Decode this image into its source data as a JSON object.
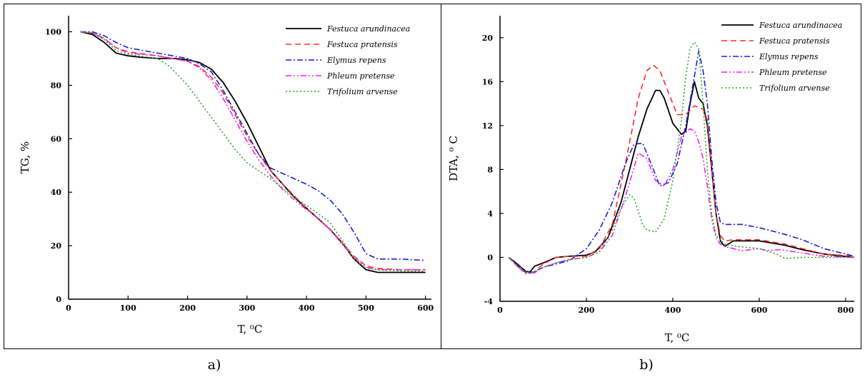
{
  "captions": [
    "a)",
    "b)"
  ],
  "chart_data": [
    {
      "type": "line",
      "panel": "a",
      "xlabel": "T, ⁰C",
      "ylabel": "TG, %",
      "xlim": [
        0,
        610
      ],
      "ylim": [
        0,
        106
      ],
      "xticks": [
        0,
        100,
        200,
        300,
        400,
        500,
        600
      ],
      "yticks": [
        0,
        20,
        40,
        60,
        80,
        100
      ],
      "legend_position": "top-right",
      "series": [
        {
          "name": "Festuca arundinacea",
          "color": "#000000",
          "dash": "solid",
          "x": [
            20,
            40,
            60,
            80,
            100,
            120,
            150,
            180,
            200,
            220,
            240,
            260,
            280,
            300,
            320,
            340,
            360,
            380,
            400,
            420,
            440,
            460,
            480,
            500,
            520,
            560,
            600
          ],
          "y": [
            100,
            99,
            96,
            92,
            91,
            90.5,
            90,
            90,
            89.5,
            88.5,
            86,
            81,
            74,
            66,
            57,
            48,
            43,
            38,
            34,
            30,
            26,
            21,
            15,
            11,
            10,
            10,
            10
          ]
        },
        {
          "name": "Festuca pratensis",
          "color": "#ff2b2b",
          "dash": "8,5",
          "x": [
            20,
            40,
            60,
            80,
            100,
            150,
            200,
            220,
            240,
            260,
            280,
            300,
            320,
            340,
            360,
            380,
            400,
            420,
            440,
            460,
            480,
            500,
            520,
            560,
            600
          ],
          "y": [
            100,
            99.5,
            97.5,
            94,
            92.5,
            91,
            89,
            87,
            83,
            77,
            69,
            61,
            54,
            48,
            43,
            38.5,
            34,
            30,
            26,
            21,
            16,
            12.5,
            11.5,
            11,
            11
          ]
        },
        {
          "name": "Elymus repens",
          "color": "#1c1cdd",
          "dash": "8,3,2,3",
          "x": [
            20,
            40,
            60,
            80,
            100,
            150,
            200,
            220,
            240,
            260,
            280,
            300,
            320,
            340,
            360,
            380,
            400,
            420,
            440,
            460,
            480,
            500,
            520,
            560,
            600
          ],
          "y": [
            100,
            100,
            98.5,
            96,
            94,
            92,
            90,
            88,
            85,
            78,
            70,
            62,
            54,
            49,
            47,
            45,
            43,
            40.5,
            37,
            32,
            25,
            17,
            15,
            15,
            14.5
          ]
        },
        {
          "name": "Phleum pretense",
          "color": "#ee22ee",
          "dash": "8,3,2,3,2,3",
          "x": [
            20,
            40,
            60,
            80,
            100,
            150,
            200,
            220,
            240,
            260,
            280,
            300,
            320,
            340,
            360,
            380,
            400,
            420,
            440,
            460,
            480,
            500,
            520,
            560,
            600
          ],
          "y": [
            100,
            99.5,
            97.5,
            94,
            92,
            91,
            89,
            86.5,
            82,
            75,
            67,
            59,
            52,
            46,
            41,
            37,
            33.5,
            30,
            26,
            20.5,
            15.5,
            12,
            11,
            11,
            11
          ]
        },
        {
          "name": "Trifolium arvense",
          "color": "#22aa22",
          "dash": "2,3",
          "x": [
            20,
            40,
            60,
            80,
            100,
            150,
            170,
            200,
            220,
            240,
            260,
            280,
            300,
            320,
            340,
            360,
            380,
            400,
            420,
            440,
            460,
            480,
            500,
            520,
            560,
            600
          ],
          "y": [
            100,
            99.5,
            97,
            93,
            91.5,
            90,
            87,
            80,
            74,
            68,
            62,
            56,
            51,
            48,
            45,
            41.5,
            38,
            35,
            32,
            28.5,
            22,
            15,
            11.5,
            11,
            10.5,
            10.5
          ]
        }
      ]
    },
    {
      "type": "line",
      "panel": "b",
      "xlabel": "T, ⁰C",
      "ylabel": "DTA, ⁰ C",
      "xlim": [
        0,
        820
      ],
      "ylim": [
        -4,
        22
      ],
      "xticks": [
        0,
        200,
        400,
        600,
        800
      ],
      "yticks": [
        -4,
        0,
        4,
        8,
        12,
        16,
        20
      ],
      "legend_position": "top-right",
      "series": [
        {
          "name": "Festuca arundinacea",
          "color": "#000000",
          "dash": "solid",
          "x": [
            20,
            40,
            60,
            70,
            80,
            100,
            130,
            160,
            200,
            220,
            250,
            280,
            300,
            320,
            340,
            360,
            370,
            380,
            400,
            420,
            430,
            440,
            450,
            460,
            470,
            480,
            490,
            500,
            510,
            520,
            540,
            600,
            660,
            700,
            750,
            820
          ],
          "y": [
            0,
            -0.6,
            -1.3,
            -1.3,
            -0.8,
            -0.5,
            0,
            0.1,
            0.2,
            0.5,
            1.8,
            5,
            8,
            11,
            13.5,
            15.2,
            15.2,
            14.5,
            12.2,
            11.2,
            11.5,
            14,
            16,
            14.5,
            14,
            12,
            8,
            4,
            1.5,
            1,
            1.5,
            1.5,
            1.1,
            0.7,
            0.3,
            0
          ]
        },
        {
          "name": "Festuca pratensis",
          "color": "#ff2b2b",
          "dash": "8,5",
          "x": [
            20,
            40,
            60,
            80,
            100,
            130,
            160,
            200,
            230,
            260,
            290,
            320,
            340,
            355,
            370,
            390,
            410,
            430,
            450,
            470,
            480,
            490,
            500,
            510,
            520,
            540,
            600,
            660,
            700,
            750,
            820
          ],
          "y": [
            0,
            -0.8,
            -1.4,
            -1.3,
            -0.6,
            0,
            0.1,
            0.1,
            0.8,
            3,
            8.5,
            14.5,
            17,
            17.5,
            17,
            15,
            13,
            13,
            13.8,
            13.5,
            12.5,
            8,
            4,
            2,
            1.5,
            1.6,
            1.6,
            1.2,
            0.8,
            0.3,
            0.1
          ]
        },
        {
          "name": "Elymus repens",
          "color": "#1c1cdd",
          "dash": "8,3,2,3",
          "x": [
            20,
            40,
            60,
            70,
            80,
            100,
            130,
            160,
            200,
            230,
            260,
            290,
            310,
            330,
            350,
            370,
            390,
            410,
            430,
            450,
            460,
            470,
            480,
            490,
            500,
            510,
            520,
            560,
            600,
            650,
            700,
            750,
            820
          ],
          "y": [
            0,
            -0.7,
            -1.2,
            -1.4,
            -1.3,
            -0.9,
            -0.6,
            -0.3,
            0.8,
            2.5,
            5,
            8.5,
            10.3,
            10.4,
            8.5,
            6.5,
            6.8,
            8.5,
            12,
            16.5,
            18.8,
            17,
            14,
            9,
            5,
            3.2,
            3,
            3,
            2.7,
            2.2,
            1.6,
            0.8,
            0.1
          ]
        },
        {
          "name": "Phleum pretense",
          "color": "#ee22ee",
          "dash": "8,3,2,3,2,3",
          "x": [
            20,
            40,
            60,
            80,
            100,
            130,
            160,
            200,
            230,
            260,
            290,
            320,
            340,
            360,
            380,
            400,
            420,
            440,
            450,
            460,
            470,
            480,
            490,
            500,
            510,
            520,
            560,
            600,
            620,
            650,
            700,
            750,
            820
          ],
          "y": [
            0,
            -0.8,
            -1.5,
            -1.4,
            -0.9,
            -0.5,
            -0.2,
            0,
            0.5,
            2,
            5.5,
            9.5,
            9,
            7,
            6.5,
            8,
            11,
            11.7,
            11.5,
            10.5,
            9,
            6.5,
            3.5,
            1.8,
            1.2,
            1,
            0.6,
            0.8,
            0.6,
            0.7,
            0.4,
            0.1,
            0
          ]
        },
        {
          "name": "Trifolium arvense",
          "color": "#22aa22",
          "dash": "2,3",
          "x": [
            20,
            40,
            60,
            80,
            100,
            130,
            160,
            200,
            230,
            260,
            280,
            300,
            310,
            320,
            330,
            340,
            360,
            380,
            400,
            420,
            430,
            440,
            450,
            460,
            470,
            480,
            490,
            500,
            520,
            550,
            600,
            640,
            660,
            700,
            750,
            820
          ],
          "y": [
            0,
            -0.8,
            -1.4,
            -1.3,
            -0.9,
            -0.5,
            -0.2,
            0,
            0.5,
            2.5,
            4.5,
            5.7,
            5.4,
            4.2,
            3,
            2.5,
            2.3,
            3.5,
            7,
            12.5,
            16.5,
            19,
            19.6,
            19,
            14,
            8,
            4,
            2,
            1.2,
            1,
            0.8,
            0.3,
            -0.1,
            0,
            0,
            0
          ]
        }
      ]
    }
  ]
}
